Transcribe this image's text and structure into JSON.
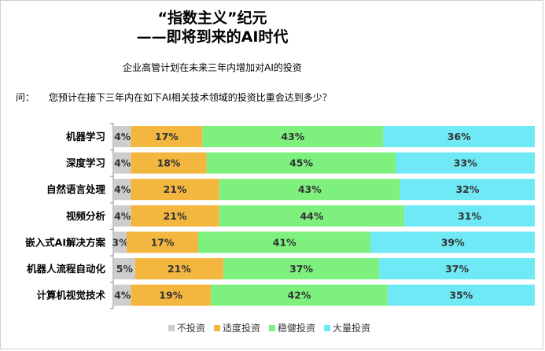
{
  "header": {
    "title_line1": "“指数主义”纪元",
    "title_line2": "——即将到来的AI时代",
    "subtitle": "企业高管计划在未来三年内增加对AI的投资",
    "question_label": "问：",
    "question_text": "您预计在接下三年内在如下AI相关技术领域的投资比重会达到多少？"
  },
  "chart_data": {
    "type": "bar",
    "orientation": "horizontal-stacked-100",
    "categories": [
      "机器学习",
      "深度学习",
      "自然语言处理",
      "视频分析",
      "嵌入式AI解决方案",
      "机器人流程自动化",
      "计算机视觉技术"
    ],
    "series": [
      {
        "name": "不投资",
        "values": [
          4,
          4,
          4,
          4,
          3,
          5,
          4
        ]
      },
      {
        "name": "适度投资",
        "values": [
          17,
          18,
          21,
          21,
          17,
          21,
          19
        ]
      },
      {
        "name": "稳健投资",
        "values": [
          43,
          45,
          43,
          44,
          41,
          37,
          42
        ]
      },
      {
        "name": "大量投资",
        "values": [
          36,
          33,
          32,
          31,
          39,
          37,
          35
        ]
      }
    ],
    "data_labels": [
      [
        "4%",
        "17%",
        "43%",
        "36%"
      ],
      [
        "4%",
        "18%",
        "45%",
        "33%"
      ],
      [
        "4%",
        "21%",
        "43%",
        "32%"
      ],
      [
        "4%",
        "21%",
        "44%",
        "31%"
      ],
      [
        "3%",
        "17%",
        "41%",
        "39%"
      ],
      [
        "5%",
        "21%",
        "37%",
        "37%"
      ],
      [
        "4%",
        "19%",
        "42%",
        "35%"
      ]
    ],
    "colors": [
      "#cdcdcd",
      "#f3b63f",
      "#7ef07e",
      "#6fe9f5"
    ],
    "legend_placement": "bottom",
    "grid": false
  }
}
